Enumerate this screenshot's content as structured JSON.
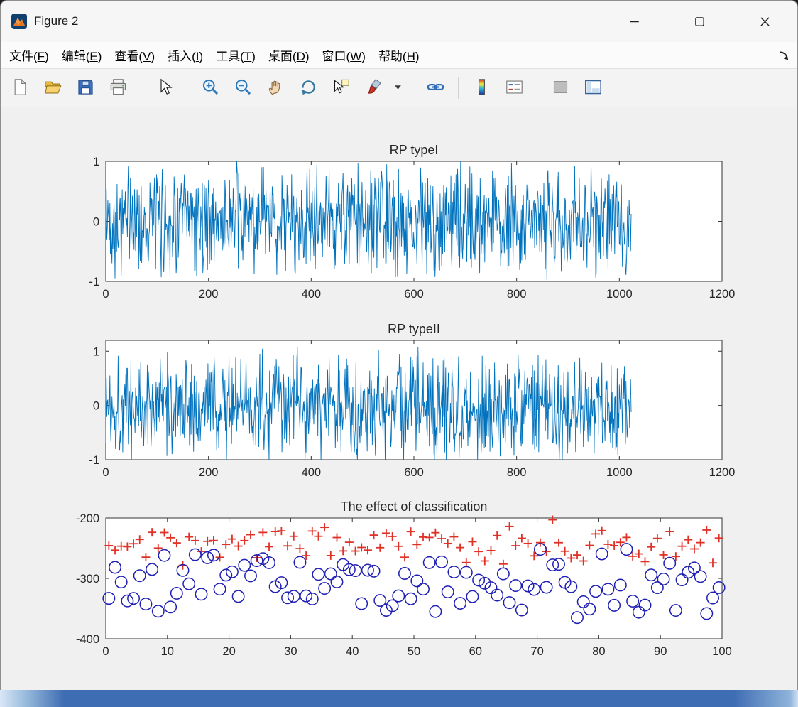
{
  "window": {
    "title": "Figure 2",
    "controls": {
      "minimize": "minimize",
      "maximize": "maximize",
      "close": "close"
    }
  },
  "menu": {
    "items": [
      {
        "text": "文件",
        "key": "F"
      },
      {
        "text": "编辑",
        "key": "E"
      },
      {
        "text": "查看",
        "key": "V"
      },
      {
        "text": "插入",
        "key": "I"
      },
      {
        "text": "工具",
        "key": "T"
      },
      {
        "text": "桌面",
        "key": "D"
      },
      {
        "text": "窗口",
        "key": "W"
      },
      {
        "text": "帮助",
        "key": "H"
      }
    ],
    "dock_icon": "dock-figure"
  },
  "toolbar": {
    "buttons": [
      "new-file",
      "open-folder",
      "save-figure",
      "print-figure",
      "separator",
      "edit-plot-pointer",
      "separator",
      "zoom-in",
      "zoom-out",
      "pan-hand",
      "rotate-3d",
      "data-cursor",
      "brush-data",
      "brush-dropdown",
      "separator",
      "link-plot",
      "separator",
      "insert-colorbar",
      "insert-legend",
      "separator",
      "hide-plot-tools",
      "show-plot-tools"
    ]
  },
  "chart_data": [
    {
      "type": "line",
      "title": "RP typeI",
      "xlim": [
        0,
        1200
      ],
      "ylim": [
        -1,
        1
      ],
      "xticks": [
        0,
        200,
        400,
        600,
        800,
        1000,
        1200
      ],
      "yticks": [
        1,
        0,
        -1
      ],
      "grid": false,
      "series": [
        {
          "name": "rp-type1-signal",
          "kind": "noise_line",
          "color": "#0072BD",
          "n": 1024,
          "seed": 42,
          "amp": 1.04,
          "clip": [
            -1,
            1
          ]
        }
      ]
    },
    {
      "type": "line",
      "title": "RP typeII",
      "xlim": [
        0,
        1200
      ],
      "ylim": [
        -1,
        1.2
      ],
      "xticks": [
        0,
        200,
        400,
        600,
        800,
        1000,
        1200
      ],
      "yticks": [
        1,
        0,
        -1
      ],
      "grid": false,
      "series": [
        {
          "name": "rp-type2-signal",
          "kind": "noise_line",
          "color": "#0072BD",
          "n": 1024,
          "seed": 1337,
          "amp": 1.12,
          "clip": [
            -1,
            1.2
          ]
        }
      ]
    },
    {
      "type": "scatter",
      "title": "The effect of classification",
      "xlim": [
        0,
        100
      ],
      "ylim": [
        -400,
        -200
      ],
      "xticks": [
        0,
        10,
        20,
        30,
        40,
        50,
        60,
        70,
        80,
        90,
        100
      ],
      "yticks": [
        -200,
        -300,
        -400
      ],
      "grid": false,
      "series": [
        {
          "name": "class-type1",
          "kind": "scatter",
          "marker": "plus",
          "color": "#e03127",
          "n": 100,
          "seed": 17,
          "center": -240,
          "spread": 44
        },
        {
          "name": "class-type2",
          "kind": "scatter",
          "marker": "circle",
          "color": "#1f1fb4",
          "n": 100,
          "seed": 91,
          "center": -311,
          "spread": 72
        }
      ]
    }
  ]
}
